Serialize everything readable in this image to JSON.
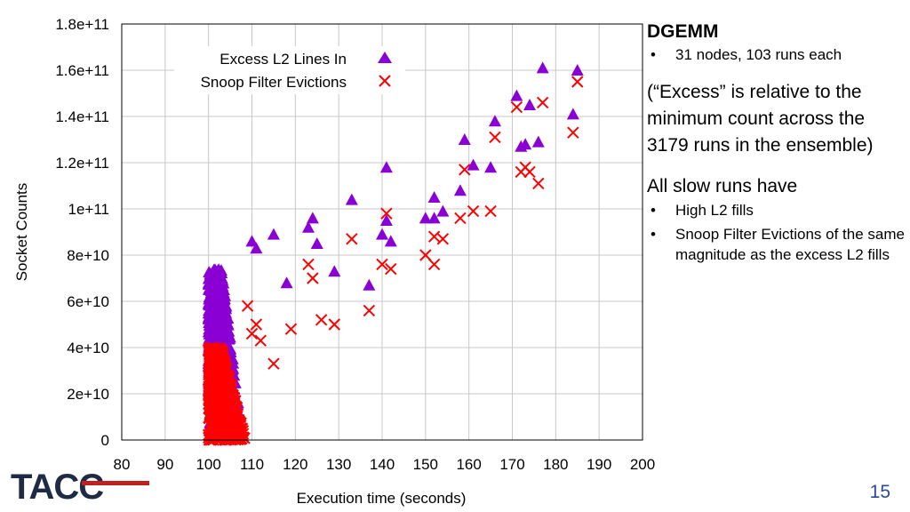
{
  "chart_data": {
    "type": "scatter",
    "xlabel": "Execution time (seconds)",
    "ylabel": "Socket Counts",
    "xlim": [
      80,
      200
    ],
    "ylim": [
      0,
      180000000000
    ],
    "x_ticks": [
      "80",
      "90",
      "100",
      "110",
      "120",
      "130",
      "140",
      "150",
      "160",
      "170",
      "180",
      "190",
      "200"
    ],
    "y_ticks": [
      "0",
      "2e+10",
      "4e+10",
      "6e+10",
      "8e+10",
      "1e+11",
      "1.2e+11",
      "1.4e+11",
      "1.6e+11",
      "1.8e+11"
    ],
    "grid": true,
    "legend_position": "top-left",
    "series": [
      {
        "name": "Excess L2 Lines In",
        "marker": "triangle",
        "color": "#8a00d4",
        "x": [
          110,
          111,
          115,
          118,
          123,
          124,
          125,
          129,
          133,
          137,
          140,
          141,
          141,
          142,
          150,
          152,
          152,
          154,
          158,
          159,
          161,
          165,
          166,
          171,
          172,
          173,
          174,
          176,
          177,
          184,
          185
        ],
        "y": [
          86000000000.0,
          83000000000.0,
          89000000000.0,
          68000000000.0,
          92000000000.0,
          96000000000.0,
          85000000000.0,
          73000000000.0,
          104000000000.0,
          67000000000.0,
          89000000000.0,
          118000000000.0,
          95000000000.0,
          86000000000.0,
          96000000000.0,
          105000000000.0,
          96000000000.0,
          99000000000.0,
          108000000000.0,
          130000000000.0,
          119000000000.0,
          118000000000.0,
          138000000000.0,
          149000000000.0,
          127000000000.0,
          128000000000.0,
          145000000000.0,
          129000000000.0,
          161000000000.0,
          141000000000.0,
          160000000000.0
        ],
        "dense_cluster": {
          "x_range": [
            100,
            108
          ],
          "y_range": [
            5000000000.0,
            74000000000.0
          ]
        }
      },
      {
        "name": "Snoop Filter Evictions",
        "marker": "x",
        "color": "#ff0000",
        "x": [
          109,
          110,
          111,
          112,
          115,
          119,
          123,
          124,
          126,
          129,
          133,
          137,
          140,
          141,
          142,
          150,
          152,
          152,
          154,
          158,
          159,
          161,
          165,
          166,
          171,
          172,
          173,
          174,
          176,
          177,
          184,
          185
        ],
        "y": [
          58000000000.0,
          46000000000.0,
          50000000000.0,
          43000000000.0,
          33000000000.0,
          48000000000.0,
          76000000000.0,
          70000000000.0,
          52000000000.0,
          50000000000.0,
          87000000000.0,
          56000000000.0,
          76000000000.0,
          98000000000.0,
          74000000000.0,
          80000000000.0,
          76000000000.0,
          88000000000.0,
          87000000000.0,
          96000000000.0,
          117000000000.0,
          99000000000.0,
          99000000000.0,
          131000000000.0,
          144000000000.0,
          116000000000.0,
          118000000000.0,
          116000000000.0,
          111000000000.0,
          146000000000.0,
          133000000000.0,
          155000000000.0
        ],
        "dense_cluster": {
          "x_range": [
            100,
            109
          ],
          "y_range": [
            0,
            40000000000.0
          ]
        }
      }
    ]
  },
  "side": {
    "title": "DGEMM",
    "bullet1": "31 nodes, 103 runs each",
    "note": "(“Excess” is relative to the minimum count across the 3179 runs in the ensemble)",
    "heading2": "All slow runs have",
    "bullet2": "High L2 fills",
    "bullet3": "Snoop Filter Evictions of the same magnitude as the excess L2 fills"
  },
  "logo_text": "TACC",
  "page_number": "15"
}
